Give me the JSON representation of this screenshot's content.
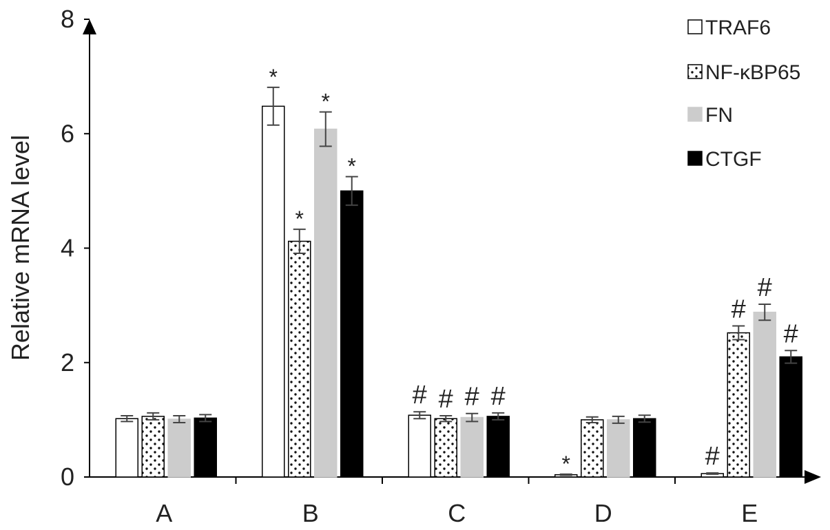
{
  "chart_data": {
    "type": "bar",
    "title": "",
    "xlabel": "",
    "ylabel": "Relative mRNA level",
    "ylim": [
      0,
      8
    ],
    "yticks": [
      "0",
      "2",
      "4",
      "6",
      "8"
    ],
    "categories": [
      "A",
      "B",
      "C",
      "D",
      "E"
    ],
    "grid": false,
    "legend_position": "top-right",
    "series": [
      {
        "name": "TRAF6",
        "fill": "#ffffff",
        "pattern": "none",
        "values": [
          1.02,
          6.48,
          1.08,
          0.04,
          0.06
        ],
        "errors": [
          0.05,
          0.33,
          0.06,
          0.01,
          0.01
        ],
        "annotations": [
          "",
          "*",
          "#",
          "*",
          "#"
        ]
      },
      {
        "name": "NF-κBP65",
        "fill": "#ffffff",
        "pattern": "dots",
        "values": [
          1.06,
          4.12,
          1.02,
          1.0,
          2.52
        ],
        "errors": [
          0.06,
          0.21,
          0.05,
          0.05,
          0.12
        ],
        "annotations": [
          "",
          "*",
          "#",
          "",
          "#"
        ]
      },
      {
        "name": "FN",
        "fill": "#cccccc",
        "pattern": "none",
        "values": [
          1.01,
          6.08,
          1.04,
          1.0,
          2.88
        ],
        "errors": [
          0.06,
          0.3,
          0.07,
          0.06,
          0.14
        ],
        "annotations": [
          "",
          "*",
          "#",
          "",
          "#"
        ]
      },
      {
        "name": "CTGF",
        "fill": "#000000",
        "pattern": "none",
        "values": [
          1.03,
          5.0,
          1.06,
          1.02,
          2.1
        ],
        "errors": [
          0.06,
          0.25,
          0.06,
          0.06,
          0.11
        ],
        "annotations": [
          "",
          "*",
          "#",
          "",
          "#"
        ]
      }
    ]
  }
}
